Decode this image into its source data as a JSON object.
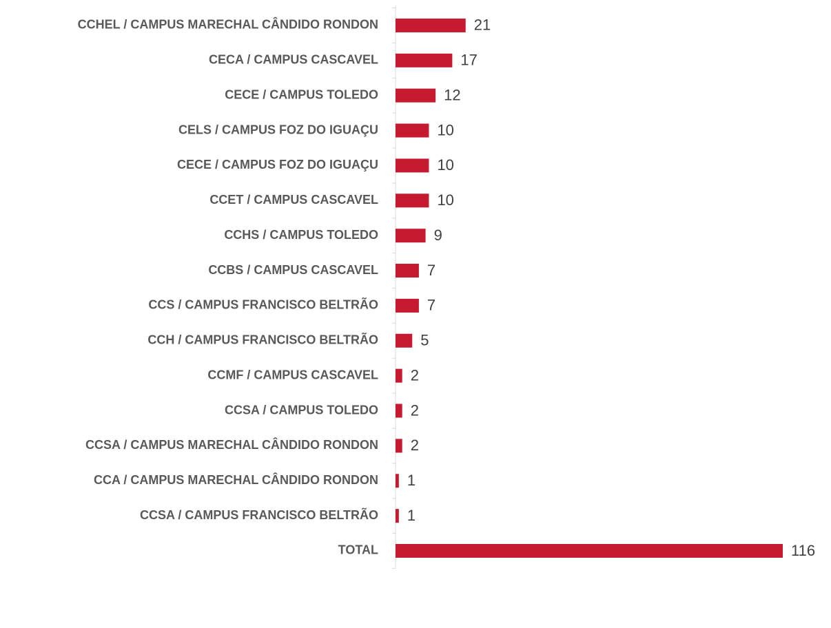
{
  "chart_data": {
    "type": "hbar",
    "categories": [
      "CCHEL / CAMPUS MARECHAL CÂNDIDO RONDON",
      "CECA / CAMPUS CASCAVEL",
      "CECE / CAMPUS TOLEDO",
      "CELS / CAMPUS FOZ DO IGUAÇU",
      "CECE / CAMPUS FOZ DO IGUAÇU",
      "CCET / CAMPUS CASCAVEL",
      "CCHS / CAMPUS TOLEDO",
      "CCBS / CAMPUS CASCAVEL",
      "CCS / CAMPUS FRANCISCO BELTRÃO",
      "CCH / CAMPUS FRANCISCO BELTRÃO",
      "CCMF / CAMPUS CASCAVEL",
      "CCSA / CAMPUS TOLEDO",
      "CCSA / CAMPUS MARECHAL CÂNDIDO RONDON",
      "CCA / CAMPUS MARECHAL CÂNDIDO RONDON",
      "CCSA / CAMPUS FRANCISCO BELTRÃO",
      "TOTAL"
    ],
    "values": [
      21,
      17,
      12,
      10,
      10,
      10,
      9,
      7,
      7,
      5,
      2,
      2,
      2,
      1,
      1,
      116
    ],
    "color": "#c51a30",
    "xlim": [
      0,
      120
    ]
  }
}
